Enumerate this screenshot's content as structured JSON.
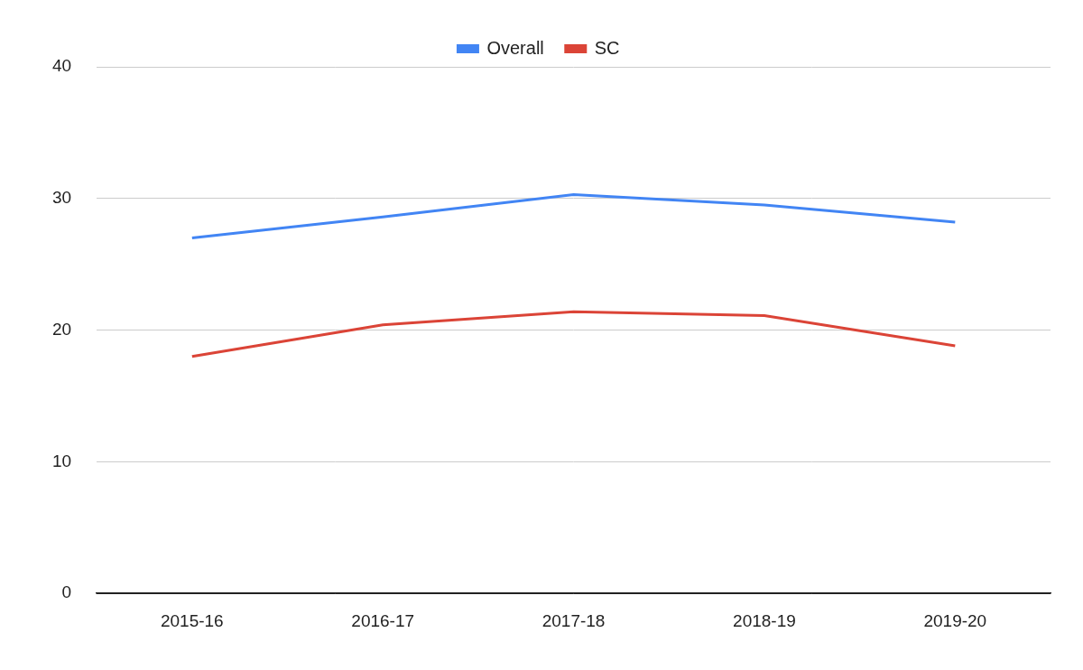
{
  "chart_data": {
    "type": "line",
    "categories": [
      "2015-16",
      "2016-17",
      "2017-18",
      "2018-19",
      "2019-20"
    ],
    "series": [
      {
        "name": "Overall",
        "color": "#4285f4",
        "values": [
          27.0,
          28.6,
          30.3,
          29.5,
          28.2
        ]
      },
      {
        "name": "SC",
        "color": "#db4437",
        "values": [
          18.0,
          20.4,
          21.4,
          21.1,
          18.8
        ]
      }
    ],
    "ylim": [
      0,
      40
    ],
    "yticks": [
      0,
      10,
      20,
      30,
      40
    ],
    "grid": true,
    "legend": "top"
  }
}
